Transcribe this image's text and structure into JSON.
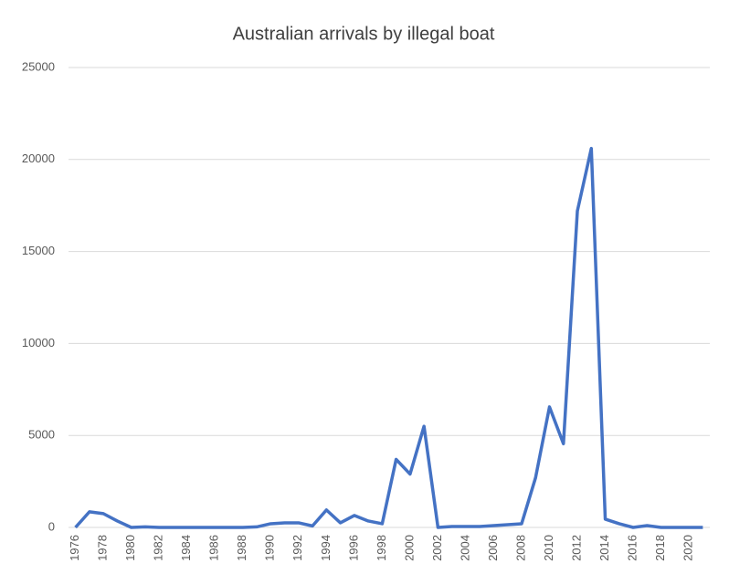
{
  "chart_data": {
    "type": "line",
    "title": "Australian arrivals by illegal boat",
    "categories": [
      "1976",
      null,
      "1978",
      null,
      "1980",
      null,
      "1982",
      null,
      "1984",
      null,
      "1986",
      null,
      "1988",
      null,
      "1990",
      null,
      "1992",
      null,
      "1994",
      null,
      "1996",
      null,
      "1998",
      null,
      "2000",
      null,
      "2002",
      null,
      "2004",
      null,
      "2006",
      null,
      "2008",
      null,
      "2010",
      null,
      "2012",
      null,
      "2014",
      null,
      "2016",
      null,
      "2018",
      null,
      "2020",
      null
    ],
    "series": [
      {
        "color": "#4472c4",
        "values": [
          0,
          850,
          750,
          350,
          0,
          30,
          0,
          0,
          0,
          0,
          0,
          0,
          0,
          30,
          200,
          250,
          250,
          80,
          950,
          250,
          650,
          350,
          200,
          3700,
          2900,
          5500,
          0,
          50,
          50,
          50,
          100,
          150,
          200,
          2700,
          6550,
          4550,
          17200,
          20600,
          450,
          200,
          0,
          100,
          0,
          0,
          0,
          0
        ]
      }
    ],
    "ylim": [
      0,
      25000
    ],
    "yticks": [
      0,
      5000,
      10000,
      15000,
      20000,
      25000
    ],
    "grid": true
  }
}
